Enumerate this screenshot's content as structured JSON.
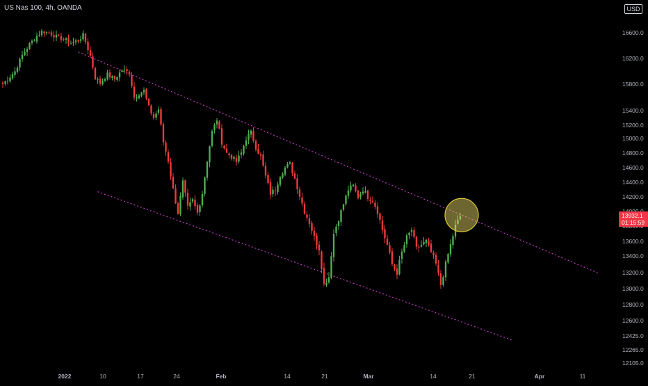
{
  "header": {
    "title": "US Nas 100, 4h, OANDA",
    "currency": "USD"
  },
  "price_tag": {
    "price": "13932.1",
    "countdown": "01:15:59",
    "color": "#f23645"
  },
  "colors": {
    "up": "#4caf50",
    "down": "#ef3a3a",
    "channel": "#c23ac8",
    "highlight_fill": "#f5e26a",
    "highlight_stroke": "#d9c43a"
  },
  "chart_data": {
    "type": "candlestick",
    "title": "US Nas 100, 4h, OANDA",
    "y_unit": "USD",
    "y_tick_labels": [
      "16600.0",
      "16200.0",
      "15800.0",
      "15400.0",
      "15200.0",
      "15000.0",
      "14800.0",
      "14600.0",
      "14400.0",
      "14200.0",
      "14000.0",
      "13800.0",
      "13600.0",
      "13400.0",
      "13200.0",
      "13000.0",
      "12800.0",
      "12600.0",
      "12425.0",
      "12265.0",
      "12105.0"
    ],
    "x_tick_labels": [
      "2022",
      "10",
      "17",
      "24",
      "Feb",
      "14",
      "21",
      "Mar",
      "14",
      "21",
      "Apr",
      "11"
    ],
    "x_tick_bold": [
      "2022",
      "Feb",
      "Mar",
      "Apr"
    ],
    "close_path": [
      [
        0,
        15800
      ],
      [
        2,
        15880
      ],
      [
        5,
        16000
      ],
      [
        8,
        16250
      ],
      [
        11,
        16420
      ],
      [
        14,
        16550
      ],
      [
        16,
        16620
      ],
      [
        19,
        16600
      ],
      [
        22,
        16540
      ],
      [
        25,
        16500
      ],
      [
        28,
        16440
      ],
      [
        31,
        16480
      ],
      [
        33,
        16560
      ],
      [
        36,
        16240
      ],
      [
        38,
        15900
      ],
      [
        40,
        15820
      ],
      [
        43,
        15950
      ],
      [
        46,
        15880
      ],
      [
        49,
        16020
      ],
      [
        52,
        15980
      ],
      [
        54,
        15600
      ],
      [
        56,
        15660
      ],
      [
        58,
        15700
      ],
      [
        60,
        15450
      ],
      [
        62,
        15300
      ],
      [
        64,
        15420
      ],
      [
        66,
        14950
      ],
      [
        68,
        14700
      ],
      [
        70,
        14300
      ],
      [
        72,
        13980
      ],
      [
        74,
        14400
      ],
      [
        76,
        14050
      ],
      [
        78,
        14150
      ],
      [
        80,
        13980
      ],
      [
        82,
        14250
      ],
      [
        84,
        14700
      ],
      [
        86,
        15100
      ],
      [
        88,
        15280
      ],
      [
        90,
        14950
      ],
      [
        92,
        14800
      ],
      [
        94,
        14750
      ],
      [
        96,
        14680
      ],
      [
        98,
        14800
      ],
      [
        100,
        15000
      ],
      [
        102,
        15090
      ],
      [
        104,
        14880
      ],
      [
        106,
        14750
      ],
      [
        108,
        14480
      ],
      [
        110,
        14250
      ],
      [
        112,
        14300
      ],
      [
        114,
        14500
      ],
      [
        116,
        14600
      ],
      [
        118,
        14650
      ],
      [
        120,
        14450
      ],
      [
        122,
        14220
      ],
      [
        124,
        14000
      ],
      [
        126,
        13850
      ],
      [
        128,
        13650
      ],
      [
        130,
        13500
      ],
      [
        132,
        13050
      ],
      [
        134,
        13150
      ],
      [
        136,
        13700
      ],
      [
        138,
        13900
      ],
      [
        140,
        14100
      ],
      [
        142,
        14300
      ],
      [
        144,
        14350
      ],
      [
        146,
        14200
      ],
      [
        148,
        14300
      ],
      [
        150,
        14200
      ],
      [
        152,
        14150
      ],
      [
        154,
        14000
      ],
      [
        156,
        13750
      ],
      [
        158,
        13550
      ],
      [
        160,
        13300
      ],
      [
        162,
        13200
      ],
      [
        164,
        13450
      ],
      [
        166,
        13650
      ],
      [
        168,
        13750
      ],
      [
        170,
        13500
      ],
      [
        172,
        13550
      ],
      [
        174,
        13600
      ],
      [
        176,
        13450
      ],
      [
        178,
        13300
      ],
      [
        180,
        13050
      ],
      [
        182,
        13300
      ],
      [
        184,
        13550
      ],
      [
        186,
        13800
      ],
      [
        188,
        13932
      ]
    ],
    "channel_upper": {
      "from": [
        31,
        16300
      ],
      "to": [
        245,
        13190
      ]
    },
    "channel_lower": {
      "from": [
        39,
        14270
      ],
      "to": [
        209,
        12380
      ]
    },
    "highlight": {
      "center": [
        188,
        13950
      ]
    }
  }
}
